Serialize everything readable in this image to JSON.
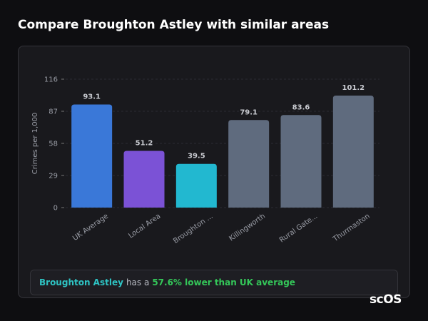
{
  "chart_data": {
    "type": "bar",
    "title": "Compare Broughton Astley with similar areas",
    "y_label": "Crimes per 1,000",
    "categories": [
      "UK Average",
      "Local Area",
      "Broughton ...",
      "Killingworth",
      "Rural Gate...",
      "Thurmaston"
    ],
    "values": [
      93.1,
      51.2,
      39.5,
      79.1,
      83.6,
      101.2
    ],
    "colors": [
      "#3a78d8",
      "#7b52d6",
      "#22b8d0",
      "#5f6b7e",
      "#5f6b7e",
      "#5f6b7e"
    ],
    "ylim": [
      0,
      116
    ],
    "yticks": [
      0,
      29,
      58,
      87,
      116
    ],
    "grid": true
  },
  "summary": {
    "area": "Broughton Astley",
    "connector": "has a",
    "highlight": "57.6% lower than UK average"
  },
  "logo": "scOS"
}
